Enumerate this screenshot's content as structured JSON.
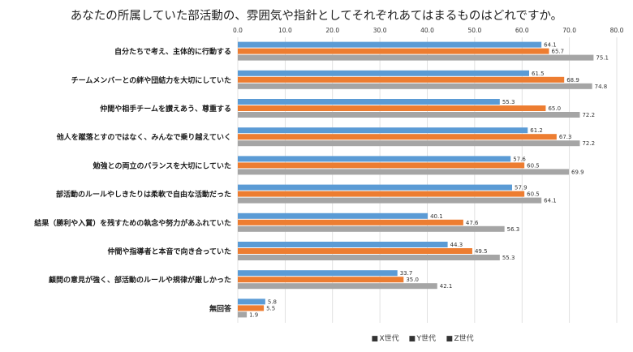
{
  "chart_data": {
    "type": "bar",
    "orientation": "horizontal",
    "title": "あなたの所属していた部活動の、雰囲気や指針としてそれぞれあてはまるものはどれですか。",
    "categories": [
      "自分たちで考え、主体的に行動する",
      "チームメンバーとの絆や団結力を大切にしていた",
      "仲間や相手チームを讃えあう、尊重する",
      "他人を蹴落とすのではなく、みんなで乗り越えていく",
      "勉強との両立のバランスを大切にしていた",
      "部活動のルールやしきたりは柔軟で自由な活動だった",
      "結果（勝利や入賞）を残すための執念や努力があふれていた",
      "仲間や指導者と本音で向き合っていた",
      "顧問の意見が強く、部活動のルールや規律が厳しかった",
      "無回答"
    ],
    "series": [
      {
        "name": "X世代",
        "color": "#5b9bd5",
        "values": [
          64.1,
          61.5,
          55.3,
          61.2,
          57.6,
          57.9,
          40.1,
          44.3,
          33.7,
          5.8
        ]
      },
      {
        "name": "Y世代",
        "color": "#ed7d31",
        "values": [
          65.7,
          68.9,
          65.0,
          67.3,
          60.5,
          60.5,
          47.6,
          49.5,
          35.0,
          5.5
        ]
      },
      {
        "name": "Z世代",
        "color": "#a5a5a5",
        "values": [
          75.1,
          74.8,
          72.2,
          72.2,
          69.9,
          64.1,
          56.3,
          55.3,
          42.1,
          1.9
        ]
      }
    ],
    "xlim": [
      0,
      80
    ],
    "xticks": [
      "0.0",
      "10.0",
      "20.0",
      "30.0",
      "40.0",
      "50.0",
      "60.0",
      "70.0",
      "80.0"
    ],
    "grid": true,
    "legend_position": "bottom",
    "legend_marker": "■"
  }
}
